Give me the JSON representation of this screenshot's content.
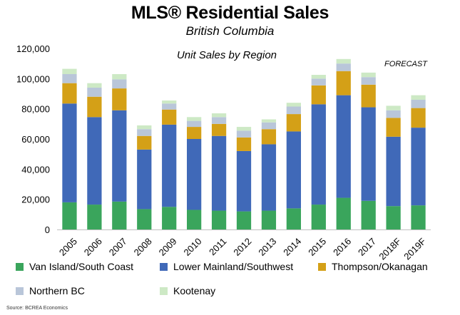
{
  "title_main": "MLS® Residential Sales",
  "subtitle": "British Columbia",
  "source": "Source: BCREA Economics",
  "chart_data": {
    "type": "bar",
    "stacked": true,
    "title": "Unit Sales by Region",
    "annotation": "FORECAST",
    "categories": [
      "2005",
      "2006",
      "2007",
      "2008",
      "2009",
      "2010",
      "2011",
      "2012",
      "2013",
      "2014",
      "2015",
      "2016",
      "2017",
      "2018F",
      "2019F"
    ],
    "ylim": [
      0,
      120000
    ],
    "yticks": [
      0,
      20000,
      40000,
      60000,
      80000,
      100000,
      120000
    ],
    "ytick_labels": [
      "0",
      "20,000",
      "40,000",
      "60,000",
      "80,000",
      "100,000",
      "120,000"
    ],
    "grid": false,
    "legend_position": "bottom",
    "series": [
      {
        "name": "Van Island/South Coast",
        "color": "#3aa55c",
        "values": [
          18000,
          16500,
          18500,
          13500,
          15000,
          13000,
          12500,
          12000,
          12500,
          14000,
          16500,
          21000,
          19000,
          15500,
          16000
        ]
      },
      {
        "name": "Lower Mainland/Southwest",
        "color": "#4069b8",
        "values": [
          65500,
          58000,
          60500,
          39500,
          54500,
          47000,
          49500,
          40000,
          44000,
          51000,
          66500,
          68000,
          62000,
          46000,
          51500
        ]
      },
      {
        "name": "Thompson/Okanagan",
        "color": "#d4a017",
        "values": [
          13500,
          13500,
          14500,
          9000,
          10000,
          8000,
          8000,
          9000,
          10000,
          11500,
          12500,
          16000,
          15000,
          12500,
          13000
        ]
      },
      {
        "name": "Northern BC",
        "color": "#b9c6d9",
        "values": [
          6000,
          6000,
          6000,
          4500,
          4000,
          4000,
          4500,
          4500,
          4500,
          5000,
          4500,
          5000,
          5000,
          5000,
          5500
        ]
      },
      {
        "name": "Kootenay",
        "color": "#cde9c5",
        "values": [
          3500,
          3000,
          3500,
          2500,
          2000,
          2500,
          2500,
          2500,
          2000,
          2500,
          2500,
          3000,
          3000,
          3000,
          3000
        ]
      }
    ]
  }
}
